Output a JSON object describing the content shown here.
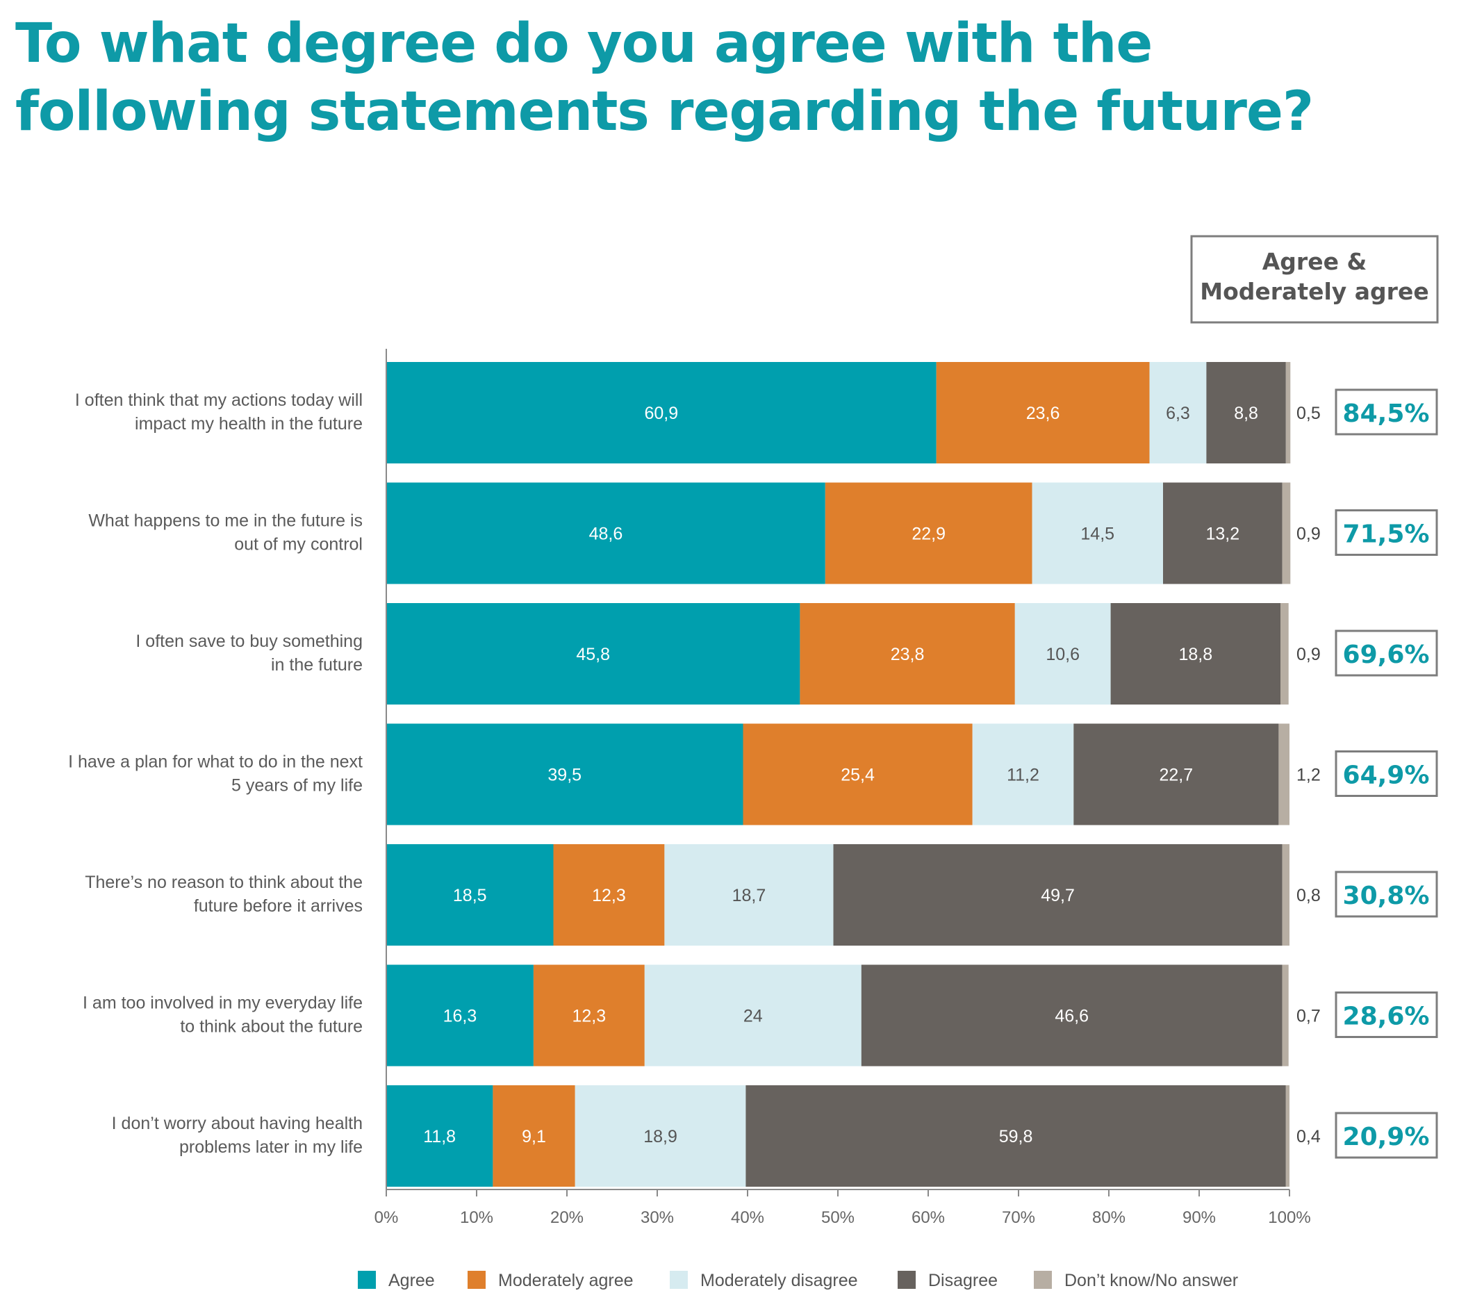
{
  "title": "To what degree do you agree with the following statements regarding the future?",
  "summary_header": [
    "Agree &",
    "Moderately agree"
  ],
  "colors": {
    "title": "#0e9aa7",
    "Agree": "#009fae",
    "Moderately agree": "#df7f2c",
    "Moderately disagree": "#d6ebf0",
    "Disagree": "#67625e",
    "Don't know/No answer": "#b7aea3"
  },
  "chart_data": {
    "type": "bar",
    "orientation": "horizontal",
    "stacked": true,
    "xlim": [
      0,
      100
    ],
    "x_ticks": [
      "0%",
      "10%",
      "20%",
      "30%",
      "40%",
      "50%",
      "60%",
      "70%",
      "80%",
      "90%",
      "100%"
    ],
    "legend_position": "bottom",
    "categories": [
      [
        "I often think that my actions today will",
        "impact my health in the future"
      ],
      [
        "What happens to me in the future is",
        "out of my control"
      ],
      [
        "I often save to buy something",
        "in the future"
      ],
      [
        "I have a plan for what to do in the next",
        "5 years of my life"
      ],
      [
        "There’s no reason to think about the",
        "future before it arrives"
      ],
      [
        "I am too involved in my everyday life",
        "to think about the future"
      ],
      [
        "I don’t worry about having health",
        "problems later in my life"
      ]
    ],
    "series": [
      {
        "name": "Agree",
        "values": [
          60.9,
          48.6,
          45.8,
          39.5,
          18.5,
          16.3,
          11.8
        ],
        "labels": [
          "60,9",
          "48,6",
          "45,8",
          "39,5",
          "18,5",
          "16,3",
          "11,8"
        ]
      },
      {
        "name": "Moderately agree",
        "values": [
          23.6,
          22.9,
          23.8,
          25.4,
          12.3,
          12.3,
          9.1
        ],
        "labels": [
          "23,6",
          "22,9",
          "23,8",
          "25,4",
          "12,3",
          "12,3",
          "9,1"
        ]
      },
      {
        "name": "Moderately disagree",
        "values": [
          6.3,
          14.5,
          10.6,
          11.2,
          18.7,
          24,
          18.9
        ],
        "labels": [
          "6,3",
          "14,5",
          "10,6",
          "11,2",
          "18,7",
          "24",
          "18,9"
        ]
      },
      {
        "name": "Disagree",
        "values": [
          8.8,
          13.2,
          18.8,
          22.7,
          49.7,
          46.6,
          59.8
        ],
        "labels": [
          "8,8",
          "13,2",
          "18,8",
          "22,7",
          "49,7",
          "46,6",
          "59,8"
        ]
      },
      {
        "name": "Don’t know/No answer",
        "values": [
          0.5,
          0.9,
          0.9,
          1.2,
          0.8,
          0.7,
          0.4
        ],
        "labels": [
          "0,5",
          "0,9",
          "0,9",
          "1,2",
          "0,8",
          "0,7",
          "0,4"
        ]
      }
    ],
    "agree_moderately_agree": [
      "84,5%",
      "71,5%",
      "69,6%",
      "64,9%",
      "30,8%",
      "28,6%",
      "20,9%"
    ]
  }
}
